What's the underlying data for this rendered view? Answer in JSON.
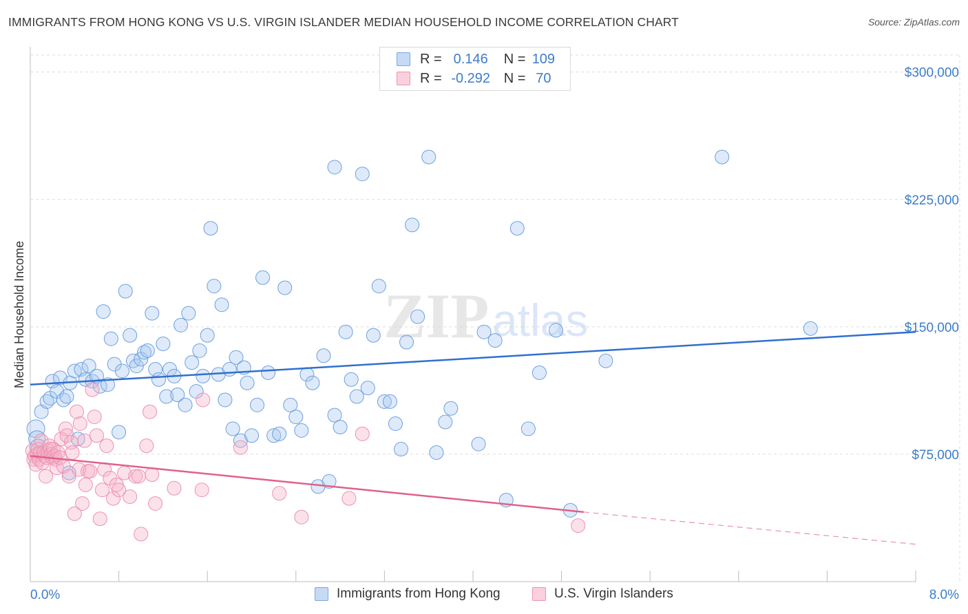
{
  "header": {
    "title": "IMMIGRANTS FROM HONG KONG VS U.S. VIRGIN ISLANDER MEDIAN HOUSEHOLD INCOME CORRELATION CHART",
    "source": "Source: ZipAtlas.com"
  },
  "watermark": {
    "zip": "ZIP",
    "atlas": "atlas"
  },
  "legend": {
    "rows": [
      {
        "r_label": "R =",
        "r_value": "0.146",
        "n_label": "N =",
        "n_value": "109",
        "color": "#a9c8ef"
      },
      {
        "r_label": "R =",
        "r_value": "-0.292",
        "n_label": "N =",
        "n_value": "70",
        "color": "#f5b3c7"
      }
    ]
  },
  "bottom_legend": {
    "items": [
      {
        "label": "Immigrants from Hong Kong",
        "color": "#a9c8ef"
      },
      {
        "label": "U.S. Virgin Islanders",
        "color": "#f5b3c7"
      }
    ]
  },
  "chart_data": {
    "type": "scatter",
    "title": "IMMIGRANTS FROM HONG KONG VS U.S. VIRGIN ISLANDER MEDIAN HOUSEHOLD INCOME CORRELATION CHART",
    "xlabel": "",
    "ylabel": "Median Household Income",
    "xlim": [
      0,
      8
    ],
    "ylim": [
      0,
      310000
    ],
    "x_tick_labels": [
      "0.0%",
      "8.0%"
    ],
    "y_ticks": [
      75000,
      150000,
      225000,
      300000
    ],
    "y_tick_labels": [
      "$75,000",
      "$150,000",
      "$225,000",
      "$300,000"
    ],
    "grid": true,
    "legend_position": "top-center",
    "series": [
      {
        "name": "Immigrants from Hong Kong",
        "color": "#6b9fe0",
        "trend": {
          "x0": 0,
          "y0": 116000,
          "x1": 8,
          "y1": 147000,
          "color": "#2f6fcf"
        },
        "points": [
          [
            0.05,
            90000
          ],
          [
            0.06,
            84000
          ],
          [
            0.07,
            79000
          ],
          [
            0.1,
            100000
          ],
          [
            0.15,
            106000
          ],
          [
            0.18,
            108000
          ],
          [
            0.2,
            118000
          ],
          [
            0.24,
            112000
          ],
          [
            0.27,
            120000
          ],
          [
            0.3,
            107000
          ],
          [
            0.33,
            109000
          ],
          [
            0.36,
            117000
          ],
          [
            0.4,
            124000
          ],
          [
            0.43,
            84000
          ],
          [
            0.46,
            125000
          ],
          [
            0.5,
            119000
          ],
          [
            0.53,
            127000
          ],
          [
            0.56,
            118000
          ],
          [
            0.6,
            121000
          ],
          [
            0.63,
            115000
          ],
          [
            0.66,
            159000
          ],
          [
            0.7,
            116000
          ],
          [
            0.73,
            143000
          ],
          [
            0.76,
            128000
          ],
          [
            0.8,
            88000
          ],
          [
            0.83,
            124000
          ],
          [
            0.86,
            171000
          ],
          [
            0.9,
            145000
          ],
          [
            0.93,
            130000
          ],
          [
            0.96,
            127000
          ],
          [
            1.0,
            131000
          ],
          [
            1.03,
            135000
          ],
          [
            1.06,
            136000
          ],
          [
            1.1,
            158000
          ],
          [
            1.13,
            125000
          ],
          [
            1.16,
            119000
          ],
          [
            1.2,
            140000
          ],
          [
            1.23,
            109000
          ],
          [
            1.26,
            125000
          ],
          [
            1.3,
            121000
          ],
          [
            1.33,
            110000
          ],
          [
            1.36,
            151000
          ],
          [
            1.4,
            104000
          ],
          [
            1.43,
            158000
          ],
          [
            1.46,
            129000
          ],
          [
            1.5,
            112000
          ],
          [
            1.53,
            136000
          ],
          [
            1.56,
            121000
          ],
          [
            1.6,
            145000
          ],
          [
            1.63,
            208000
          ],
          [
            1.66,
            174000
          ],
          [
            1.7,
            122000
          ],
          [
            1.73,
            163000
          ],
          [
            1.76,
            107000
          ],
          [
            1.8,
            125000
          ],
          [
            1.83,
            90000
          ],
          [
            1.86,
            132000
          ],
          [
            1.9,
            83000
          ],
          [
            1.93,
            126000
          ],
          [
            1.96,
            117000
          ],
          [
            2.0,
            86000
          ],
          [
            2.05,
            104000
          ],
          [
            2.1,
            179000
          ],
          [
            2.15,
            123000
          ],
          [
            2.2,
            86000
          ],
          [
            2.25,
            87000
          ],
          [
            2.3,
            173000
          ],
          [
            2.35,
            104000
          ],
          [
            2.4,
            97000
          ],
          [
            2.45,
            89000
          ],
          [
            2.5,
            122000
          ],
          [
            2.55,
            117000
          ],
          [
            2.6,
            56000
          ],
          [
            2.65,
            133000
          ],
          [
            2.7,
            59000
          ],
          [
            2.75,
            98000
          ],
          [
            2.8,
            91000
          ],
          [
            2.85,
            147000
          ],
          [
            2.9,
            119000
          ],
          [
            2.95,
            109000
          ],
          [
            3.0,
            240000
          ],
          [
            3.05,
            114000
          ],
          [
            3.1,
            145000
          ],
          [
            3.15,
            174000
          ],
          [
            3.2,
            106000
          ],
          [
            3.25,
            106000
          ],
          [
            3.3,
            93000
          ],
          [
            3.35,
            78000
          ],
          [
            3.4,
            141000
          ],
          [
            3.45,
            210000
          ],
          [
            3.5,
            156000
          ],
          [
            3.6,
            250000
          ],
          [
            3.67,
            76000
          ],
          [
            3.75,
            94000
          ],
          [
            3.8,
            102000
          ],
          [
            4.05,
            81000
          ],
          [
            4.1,
            147000
          ],
          [
            4.2,
            142000
          ],
          [
            4.3,
            48000
          ],
          [
            4.4,
            208000
          ],
          [
            4.5,
            90000
          ],
          [
            4.6,
            123000
          ],
          [
            4.75,
            148000
          ],
          [
            4.88,
            42000
          ],
          [
            5.2,
            130000
          ],
          [
            6.25,
            250000
          ],
          [
            7.05,
            149000
          ],
          [
            2.75,
            244000
          ],
          [
            0.35,
            64000
          ]
        ]
      },
      {
        "name": "U.S. Virgin Islanders",
        "color": "#ee8fb0",
        "trend": {
          "x0": 0,
          "y0": 74000,
          "x1": 5.0,
          "y1": 41000,
          "x_dash_end": 8,
          "y_dash_end": 22000,
          "color": "#e0608a"
        },
        "points": [
          [
            0.02,
            77000
          ],
          [
            0.03,
            72000
          ],
          [
            0.04,
            74000
          ],
          [
            0.05,
            69000
          ],
          [
            0.06,
            75000
          ],
          [
            0.07,
            78000
          ],
          [
            0.08,
            72000
          ],
          [
            0.09,
            76000
          ],
          [
            0.1,
            83000
          ],
          [
            0.11,
            70000
          ],
          [
            0.12,
            76000
          ],
          [
            0.13,
            74000
          ],
          [
            0.14,
            62000
          ],
          [
            0.15,
            73000
          ],
          [
            0.16,
            77000
          ],
          [
            0.17,
            80000
          ],
          [
            0.18,
            78000
          ],
          [
            0.19,
            75000
          ],
          [
            0.2,
            73000
          ],
          [
            0.21,
            78000
          ],
          [
            0.22,
            74000
          ],
          [
            0.23,
            72000
          ],
          [
            0.24,
            67000
          ],
          [
            0.25,
            76000
          ],
          [
            0.27,
            73000
          ],
          [
            0.28,
            84000
          ],
          [
            0.3,
            68000
          ],
          [
            0.32,
            90000
          ],
          [
            0.33,
            86000
          ],
          [
            0.35,
            62000
          ],
          [
            0.37,
            82000
          ],
          [
            0.38,
            76000
          ],
          [
            0.4,
            40000
          ],
          [
            0.42,
            100000
          ],
          [
            0.44,
            66000
          ],
          [
            0.45,
            93000
          ],
          [
            0.47,
            46000
          ],
          [
            0.49,
            83000
          ],
          [
            0.5,
            57000
          ],
          [
            0.52,
            65000
          ],
          [
            0.54,
            65000
          ],
          [
            0.56,
            113000
          ],
          [
            0.58,
            97000
          ],
          [
            0.6,
            86000
          ],
          [
            0.63,
            37000
          ],
          [
            0.65,
            54000
          ],
          [
            0.67,
            66000
          ],
          [
            0.69,
            80000
          ],
          [
            0.72,
            61000
          ],
          [
            0.75,
            49000
          ],
          [
            0.78,
            57000
          ],
          [
            0.8,
            54000
          ],
          [
            0.85,
            64000
          ],
          [
            0.9,
            50000
          ],
          [
            0.95,
            62000
          ],
          [
            1.0,
            28000
          ],
          [
            1.05,
            80000
          ],
          [
            1.08,
            100000
          ],
          [
            1.1,
            63000
          ],
          [
            1.13,
            46000
          ],
          [
            1.3,
            55000
          ],
          [
            1.55,
            54000
          ],
          [
            1.56,
            107000
          ],
          [
            1.9,
            79000
          ],
          [
            2.25,
            52000
          ],
          [
            2.45,
            38000
          ],
          [
            2.88,
            49000
          ],
          [
            3.0,
            87000
          ],
          [
            4.95,
            33000
          ],
          [
            0.98,
            62000
          ]
        ]
      }
    ]
  }
}
